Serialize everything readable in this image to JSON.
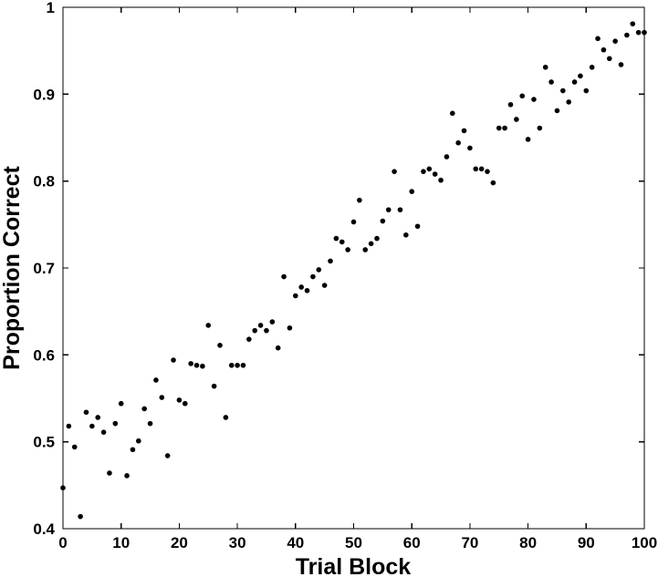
{
  "chart_data": {
    "type": "scatter",
    "title": "",
    "xlabel": "Trial Block",
    "ylabel": "Proportion Correct",
    "xlim": [
      0,
      100
    ],
    "ylim": [
      0.4,
      1.0
    ],
    "x_ticks": [
      0,
      10,
      20,
      30,
      40,
      50,
      60,
      70,
      80,
      90,
      100
    ],
    "y_ticks": [
      0.4,
      0.5,
      0.6,
      0.7,
      0.8,
      0.9,
      1.0
    ],
    "x_tick_labels": [
      "0",
      "10",
      "20",
      "30",
      "40",
      "50",
      "60",
      "70",
      "80",
      "90",
      "100"
    ],
    "y_tick_labels": [
      "0.4",
      "0.5",
      "0.6",
      "0.7",
      "0.8",
      "0.9",
      "1"
    ],
    "grid": false,
    "legend": "none",
    "marker_color": "#000000",
    "series": [
      {
        "x": [
          0,
          1,
          2,
          3,
          4,
          5,
          6,
          7,
          8,
          9,
          10,
          11,
          12,
          13,
          14,
          15,
          16,
          17,
          18,
          19,
          20,
          21,
          22,
          23,
          24,
          25,
          26,
          27,
          28,
          29,
          30,
          31,
          32,
          33,
          34,
          35,
          36,
          37,
          38,
          39,
          40,
          41,
          42,
          43,
          44,
          45,
          46,
          47,
          48,
          49,
          50,
          51,
          52,
          53,
          54,
          55,
          56,
          57,
          58,
          59,
          60,
          61,
          62,
          63,
          64,
          65,
          66,
          67,
          68,
          69,
          70,
          71,
          72,
          73,
          74,
          75,
          76,
          77,
          78,
          79,
          80,
          81,
          82,
          83,
          84,
          85,
          86,
          87,
          88,
          89,
          90,
          91,
          92,
          93,
          94,
          95,
          96,
          97,
          98,
          99,
          100
        ],
        "y": [
          0.447,
          0.518,
          0.494,
          0.414,
          0.534,
          0.518,
          0.528,
          0.511,
          0.464,
          0.521,
          0.544,
          0.461,
          0.491,
          0.501,
          0.538,
          0.521,
          0.571,
          0.551,
          0.484,
          0.594,
          0.548,
          0.544,
          0.59,
          0.588,
          0.587,
          0.634,
          0.564,
          0.611,
          0.528,
          0.588,
          0.588,
          0.588,
          0.618,
          0.628,
          0.634,
          0.628,
          0.638,
          0.608,
          0.69,
          0.631,
          0.668,
          0.678,
          0.674,
          0.69,
          0.698,
          0.68,
          0.708,
          0.734,
          0.73,
          0.721,
          0.753,
          0.778,
          0.721,
          0.728,
          0.734,
          0.754,
          0.767,
          0.811,
          0.767,
          0.738,
          0.788,
          0.748,
          0.811,
          0.814,
          0.808,
          0.801,
          0.828,
          0.878,
          0.844,
          0.858,
          0.838,
          0.814,
          0.814,
          0.811,
          0.798,
          0.861,
          0.861,
          0.888,
          0.871,
          0.898,
          0.848,
          0.894,
          0.861,
          0.931,
          0.914,
          0.881,
          0.904,
          0.891,
          0.914,
          0.921,
          0.904,
          0.931,
          0.964,
          0.951,
          0.941,
          0.961,
          0.934,
          0.968,
          0.981,
          0.971,
          0.971
        ]
      }
    ]
  }
}
